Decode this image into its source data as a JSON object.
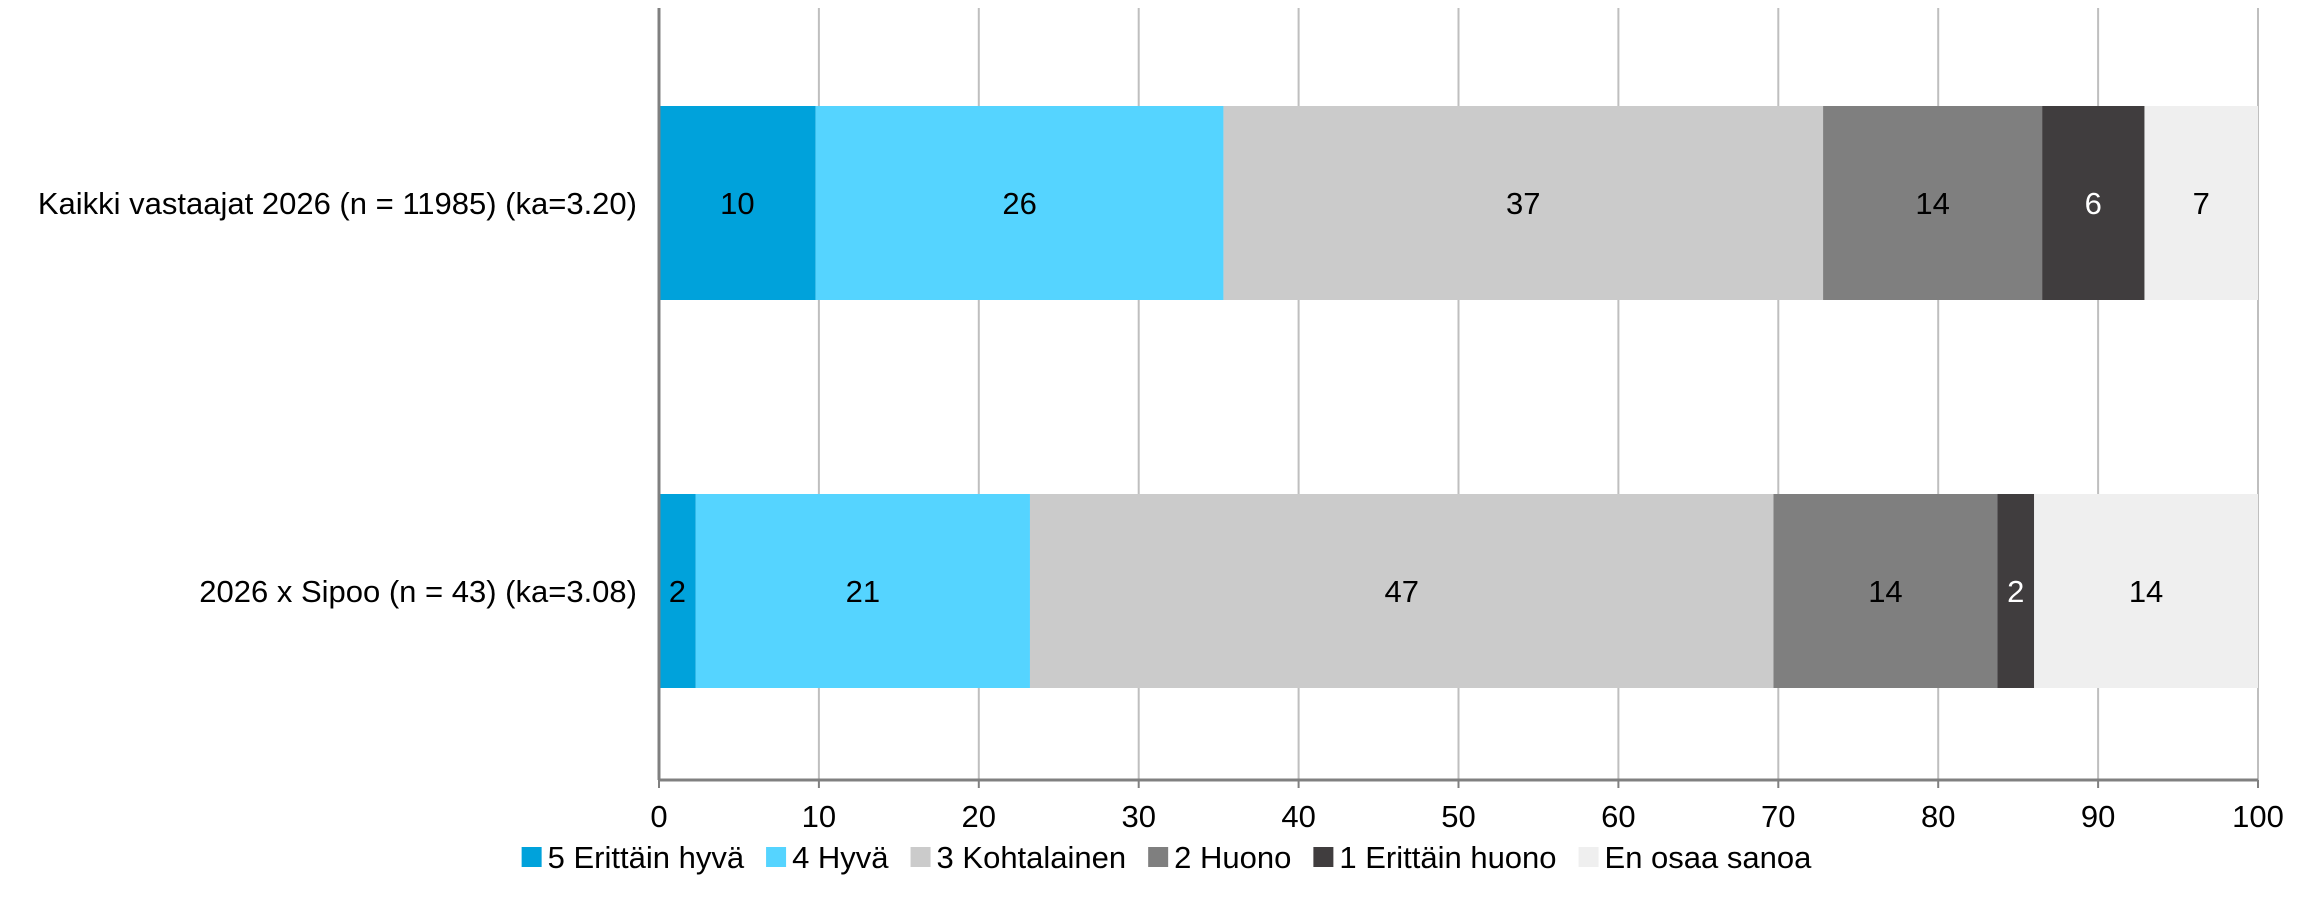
{
  "chart_data": {
    "type": "bar",
    "orientation": "horizontal",
    "stacked": true,
    "title": "",
    "xlabel": "",
    "ylabel": "",
    "xlim": [
      0,
      100
    ],
    "x_ticks": [
      0,
      10,
      20,
      30,
      40,
      50,
      60,
      70,
      80,
      90,
      100
    ],
    "grid": "vertical",
    "legend_position": "bottom",
    "categories": [
      "Kaikki vastaajat 2026 (n = 11985) (ka=3.20)",
      "2026 x Sipoo (n = 43) (ka=3.08)"
    ],
    "series": [
      {
        "name": "5 Erittäin hyvä",
        "color": "#00A2DB",
        "values": [
          9.8,
          2.3
        ],
        "labels": [
          "10",
          "2"
        ]
      },
      {
        "name": "4 Hyvä",
        "color": "#55D4FF",
        "values": [
          25.5,
          20.9
        ],
        "labels": [
          "26",
          "21"
        ]
      },
      {
        "name": "3 Kohtalainen",
        "color": "#CBCBCB",
        "values": [
          37.5,
          46.5
        ],
        "labels": [
          "37",
          "47"
        ]
      },
      {
        "name": "2 Huono",
        "color": "#7F7F7F",
        "values": [
          13.7,
          14.0
        ],
        "labels": [
          "14",
          "14"
        ]
      },
      {
        "name": "1 Erittäin huono",
        "color": "#403D3E",
        "values": [
          6.4,
          2.3
        ],
        "labels": [
          "6",
          "2"
        ]
      },
      {
        "name": "En osaa sanoa",
        "color": "#EFEFEF",
        "values": [
          7.1,
          14.0
        ],
        "labels": [
          "7",
          "14"
        ]
      }
    ]
  }
}
